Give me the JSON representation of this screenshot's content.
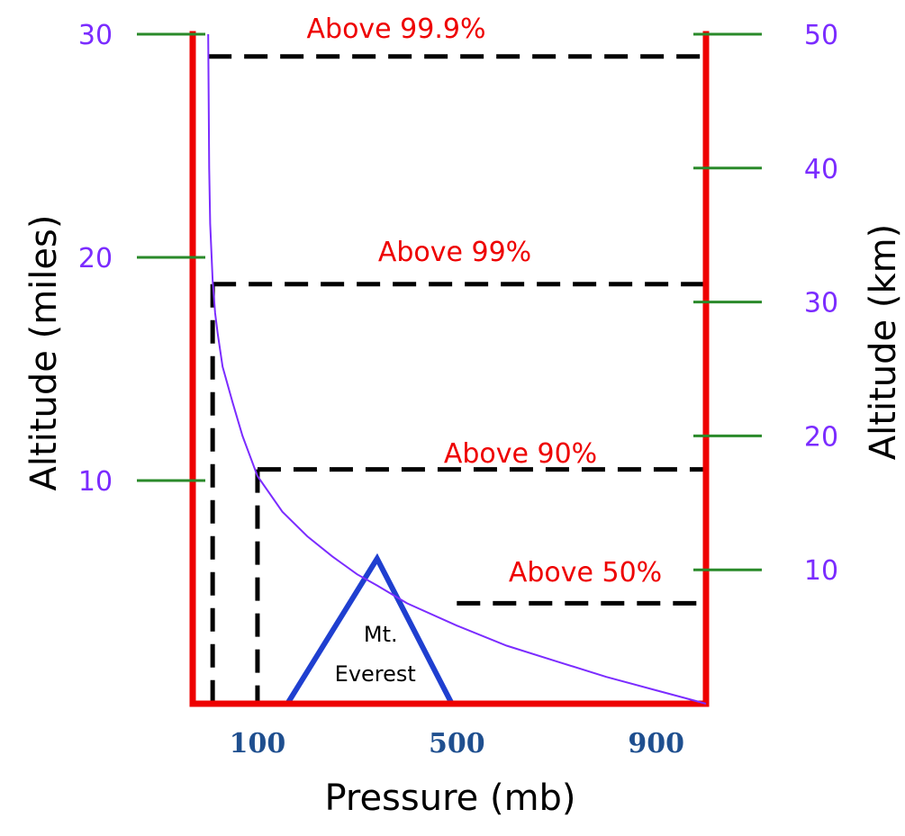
{
  "chart_data": {
    "type": "line",
    "xlabel": "Pressure (mb)",
    "ylabel_left": "Altitude (miles)",
    "ylabel_right": "Altitude (km)",
    "x_ticks": [
      "100",
      "500",
      "900"
    ],
    "x_tick_values": [
      100,
      500,
      900
    ],
    "y_left_ticks": [
      "10",
      "20",
      "30"
    ],
    "y_left_tick_values": [
      10,
      20,
      30
    ],
    "y_right_ticks": [
      "10",
      "20",
      "30",
      "40",
      "50"
    ],
    "y_right_tick_values": [
      10,
      20,
      30,
      40,
      50
    ],
    "xlim": [
      -30,
      1000
    ],
    "ylim_miles": [
      0,
      31
    ],
    "grid": false,
    "series": [
      {
        "x": [
          1000,
          900,
          800,
          700,
          600,
          500,
          400,
          340,
          300,
          250,
          200,
          150,
          100,
          70,
          50,
          30,
          20,
          15,
          10,
          5,
          3,
          1
        ],
        "y": [
          0,
          0.6,
          1.2,
          1.9,
          2.6,
          3.5,
          4.5,
          5.3,
          5.8,
          6.6,
          7.5,
          8.6,
          10.2,
          12.0,
          13.5,
          15.1,
          16.6,
          17.5,
          19.0,
          21.5,
          24.0,
          30.0
        ]
      }
    ],
    "annotations": [
      {
        "label": "Above 99.9%",
        "level_miles": 29.0,
        "pressure_mb": 1
      },
      {
        "label": "Above 99%",
        "level_miles": 18.8,
        "pressure_mb": 10
      },
      {
        "label": "Above 90%",
        "level_miles": 10.5,
        "pressure_mb": 100
      },
      {
        "label": "Above 50%",
        "level_miles": 4.5,
        "pressure_mb": 500
      }
    ],
    "mountain": {
      "label_line1": "Mt.",
      "label_line2": "Everest",
      "summit_miles": 6.5,
      "summit_pressure_mb": 340,
      "base_pressure_left": 160,
      "base_pressure_right": 490
    },
    "colors": {
      "frame": "#ee0000",
      "curve": "#7b2cff",
      "ticks_green": "#2a8a2a",
      "tick_labels": "#7b2cff",
      "annotation_text": "#ee0000",
      "pressure_labels": "#1f4f8f",
      "mountain": "#1f3fd0",
      "dashed": "#000000"
    }
  }
}
